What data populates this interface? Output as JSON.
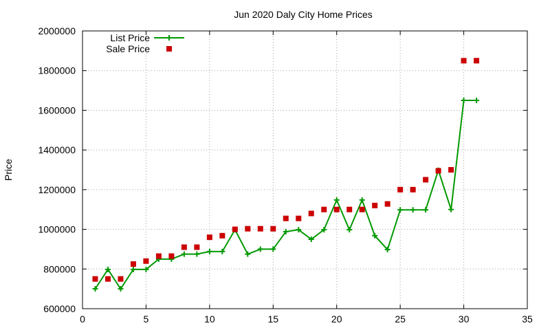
{
  "chart_data": {
    "type": "line",
    "title": "Jun 2020 Daly City Home Prices",
    "xlabel": "",
    "ylabel": "Price",
    "xlim": [
      0,
      35
    ],
    "ylim": [
      600000,
      2000000
    ],
    "xticks": [
      0,
      5,
      10,
      15,
      20,
      25,
      30,
      35
    ],
    "yticks": [
      600000,
      800000,
      1000000,
      1200000,
      1400000,
      1600000,
      1800000,
      2000000
    ],
    "grid": true,
    "legend_position": "top-left",
    "series": [
      {
        "name": "List Price",
        "style": "line+plus-marker",
        "color": "#009900",
        "points": [
          [
            1,
            700000
          ],
          [
            2,
            798000
          ],
          [
            3,
            700000
          ],
          [
            4,
            798000
          ],
          [
            5,
            798000
          ],
          [
            6,
            850000
          ],
          [
            7,
            850000
          ],
          [
            8,
            875000
          ],
          [
            9,
            875000
          ],
          [
            10,
            888000
          ],
          [
            11,
            888000
          ],
          [
            12,
            998000
          ],
          [
            13,
            875000
          ],
          [
            14,
            900000
          ],
          [
            15,
            900000
          ],
          [
            16,
            988000
          ],
          [
            17,
            998000
          ],
          [
            18,
            950000
          ],
          [
            19,
            998000
          ],
          [
            20,
            1148000
          ],
          [
            21,
            998000
          ],
          [
            22,
            1148000
          ],
          [
            23,
            968000
          ],
          [
            24,
            898000
          ],
          [
            25,
            1098000
          ],
          [
            26,
            1098000
          ],
          [
            27,
            1098000
          ],
          [
            28,
            1298000
          ],
          [
            29,
            1100000
          ],
          [
            30,
            1650000
          ],
          [
            31,
            1650000
          ]
        ]
      },
      {
        "name": "Sale Price",
        "style": "square-marker",
        "color": "#cc0000",
        "points": [
          [
            1,
            750000
          ],
          [
            2,
            750000
          ],
          [
            3,
            750000
          ],
          [
            4,
            825000
          ],
          [
            5,
            840000
          ],
          [
            6,
            865000
          ],
          [
            7,
            865000
          ],
          [
            8,
            910000
          ],
          [
            9,
            910000
          ],
          [
            10,
            960000
          ],
          [
            11,
            968000
          ],
          [
            12,
            1000000
          ],
          [
            13,
            1003000
          ],
          [
            14,
            1003000
          ],
          [
            15,
            1003000
          ],
          [
            16,
            1055000
          ],
          [
            17,
            1055000
          ],
          [
            18,
            1080000
          ],
          [
            19,
            1100000
          ],
          [
            20,
            1100000
          ],
          [
            21,
            1100000
          ],
          [
            22,
            1100000
          ],
          [
            23,
            1120000
          ],
          [
            24,
            1128000
          ],
          [
            25,
            1200000
          ],
          [
            26,
            1200000
          ],
          [
            27,
            1250000
          ],
          [
            28,
            1295000
          ],
          [
            29,
            1300000
          ],
          [
            30,
            1850000
          ],
          [
            31,
            1850000
          ]
        ]
      }
    ]
  }
}
